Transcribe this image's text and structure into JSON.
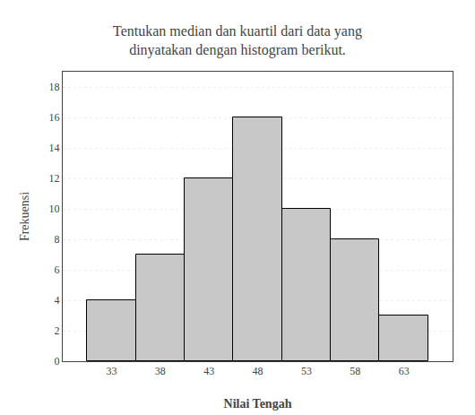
{
  "chart_data": {
    "type": "bar",
    "title": "Tentukan median dan kuartil dari data yang\ndinyatakan dengan histogram berikut.",
    "x": [
      33,
      38,
      43,
      48,
      53,
      58,
      63
    ],
    "values": [
      4,
      7,
      12,
      16,
      10,
      8,
      3
    ],
    "color": "#c8c8c8",
    "xlabel": "Nilai Tengah",
    "ylabel": "Frekuensi",
    "xlim": [
      28,
      68
    ],
    "xticks": [
      33,
      38,
      43,
      48,
      53,
      58,
      63
    ],
    "ylim": [
      0,
      19
    ],
    "yticks": [
      0,
      2,
      4,
      6,
      8,
      10,
      12,
      14,
      16,
      18
    ],
    "grid": true
  }
}
